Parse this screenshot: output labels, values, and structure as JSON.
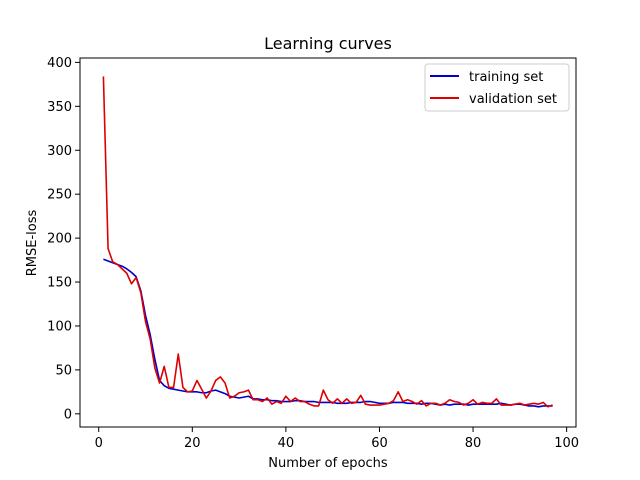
{
  "chart_data": {
    "type": "line",
    "title": "Learning curves",
    "xlabel": "Number of epochs",
    "ylabel": "RMSE-loss",
    "xlim": [
      -4,
      102
    ],
    "ylim": [
      -15,
      405
    ],
    "xticks": [
      0,
      20,
      40,
      60,
      80,
      100
    ],
    "yticks": [
      0,
      50,
      100,
      150,
      200,
      250,
      300,
      350,
      400
    ],
    "grid": false,
    "legend_position": "top-right",
    "series": [
      {
        "name": "training set",
        "color": "#0000cc",
        "x": [
          1,
          2,
          3,
          4,
          5,
          6,
          7,
          8,
          9,
          10,
          11,
          12,
          13,
          14,
          15,
          16,
          17,
          18,
          19,
          20,
          21,
          22,
          23,
          24,
          25,
          26,
          27,
          28,
          29,
          30,
          31,
          32,
          33,
          34,
          35,
          36,
          37,
          38,
          39,
          40,
          41,
          42,
          43,
          44,
          45,
          46,
          47,
          48,
          49,
          50,
          51,
          52,
          53,
          54,
          55,
          56,
          57,
          58,
          59,
          60,
          61,
          62,
          63,
          64,
          65,
          66,
          67,
          68,
          69,
          70,
          71,
          72,
          73,
          74,
          75,
          76,
          77,
          78,
          79,
          80,
          81,
          82,
          83,
          84,
          85,
          86,
          87,
          88,
          89,
          90,
          91,
          92,
          93,
          94,
          95,
          96,
          97
        ],
        "y": [
          176,
          174,
          172,
          170,
          168,
          165,
          161,
          156,
          140,
          112,
          90,
          62,
          38,
          32,
          29,
          28,
          27,
          26,
          25,
          25,
          25,
          24,
          24,
          26,
          27,
          25,
          23,
          20,
          19,
          18,
          19,
          20,
          17,
          17,
          16,
          16,
          15,
          15,
          14,
          14,
          14,
          15,
          15,
          14,
          14,
          14,
          13,
          13,
          13,
          13,
          12,
          12,
          12,
          13,
          13,
          13,
          14,
          14,
          13,
          12,
          12,
          12,
          13,
          13,
          13,
          12,
          12,
          12,
          11,
          12,
          12,
          11,
          10,
          11,
          10,
          11,
          11,
          11,
          10,
          11,
          11,
          11,
          11,
          11,
          11,
          12,
          11,
          10,
          11,
          11,
          10,
          9,
          9,
          8,
          9,
          9,
          9
        ]
      },
      {
        "name": "validation set",
        "color": "#dd0000",
        "x": [
          1,
          2,
          3,
          4,
          5,
          6,
          7,
          8,
          9,
          10,
          11,
          12,
          13,
          14,
          15,
          16,
          17,
          18,
          19,
          20,
          21,
          22,
          23,
          24,
          25,
          26,
          27,
          28,
          29,
          30,
          31,
          32,
          33,
          34,
          35,
          36,
          37,
          38,
          39,
          40,
          41,
          42,
          43,
          44,
          45,
          46,
          47,
          48,
          49,
          50,
          51,
          52,
          53,
          54,
          55,
          56,
          57,
          58,
          59,
          60,
          61,
          62,
          63,
          64,
          65,
          66,
          67,
          68,
          69,
          70,
          71,
          72,
          73,
          74,
          75,
          76,
          77,
          78,
          79,
          80,
          81,
          82,
          83,
          84,
          85,
          86,
          87,
          88,
          89,
          90,
          91,
          92,
          93,
          94,
          95,
          96,
          97
        ],
        "y": [
          384,
          188,
          173,
          170,
          165,
          160,
          148,
          155,
          138,
          105,
          85,
          52,
          35,
          54,
          30,
          30,
          68,
          30,
          25,
          26,
          38,
          28,
          18,
          26,
          38,
          42,
          35,
          18,
          20,
          24,
          25,
          27,
          16,
          16,
          14,
          18,
          11,
          14,
          12,
          20,
          14,
          18,
          14,
          14,
          11,
          9,
          9,
          27,
          16,
          12,
          17,
          12,
          17,
          12,
          13,
          21,
          11,
          10,
          10,
          10,
          11,
          12,
          15,
          25,
          14,
          16,
          14,
          11,
          15,
          9,
          12,
          12,
          10,
          12,
          16,
          14,
          13,
          10,
          12,
          16,
          11,
          13,
          12,
          12,
          17,
          10,
          10,
          10,
          11,
          12,
          10,
          11,
          12,
          11,
          13,
          8,
          10
        ]
      }
    ]
  }
}
